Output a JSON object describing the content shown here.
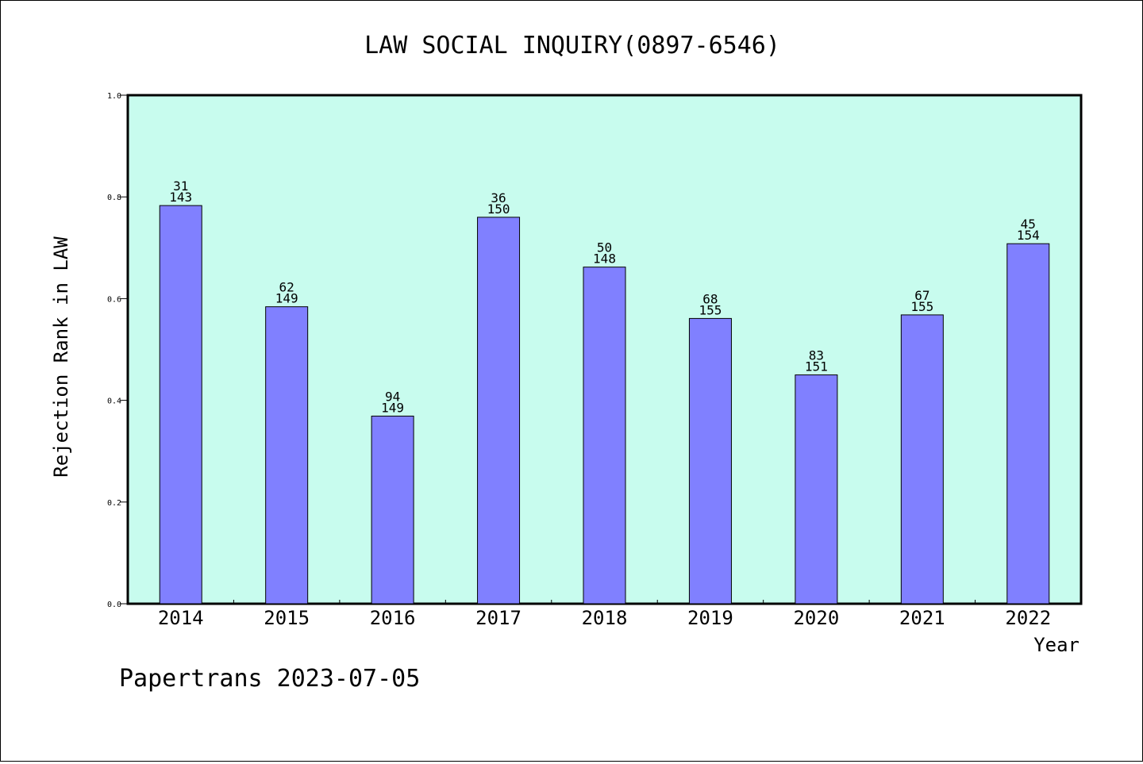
{
  "chart_data": {
    "type": "bar",
    "title": "LAW SOCIAL INQUIRY(0897-6546)",
    "ylabel": "Rejection Rank in LAW",
    "xlabel": "Year",
    "ylim": [
      0.0,
      1.0
    ],
    "yticks": [
      "0.0",
      "0.2",
      "0.4",
      "0.6",
      "0.8",
      "1.0"
    ],
    "categories": [
      "2014",
      "2015",
      "2016",
      "2017",
      "2018",
      "2019",
      "2020",
      "2021",
      "2022"
    ],
    "values": [
      0.783,
      0.584,
      0.369,
      0.76,
      0.662,
      0.561,
      0.45,
      0.568,
      0.708
    ],
    "rank": [
      "31",
      "62",
      "94",
      "36",
      "50",
      "68",
      "83",
      "67",
      "45"
    ],
    "total": [
      "143",
      "149",
      "149",
      "150",
      "148",
      "155",
      "151",
      "155",
      "154"
    ],
    "colors": {
      "plot_bg": "#c8fcee",
      "bar": "#8080ff"
    }
  },
  "footer": "Papertrans 2023-07-05"
}
